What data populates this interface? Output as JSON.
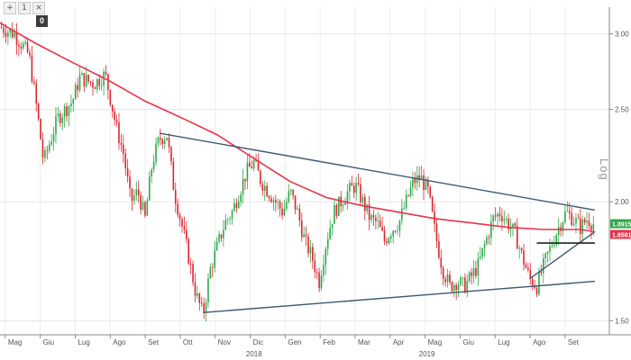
{
  "toolbar": {
    "buttons": [
      "+",
      "1",
      "×"
    ],
    "indicator": "0"
  },
  "scale_label": "Log",
  "chart_data": {
    "type": "candlestick",
    "y_scale": "log",
    "ylim": [
      1.45,
      3.2
    ],
    "y_ticks": [
      3.0,
      2.5,
      2.0,
      1.5
    ],
    "y_tick_labels": [
      "3.00",
      "2.50",
      "2.00",
      "1.50"
    ],
    "x_month_labels": [
      "Mag",
      "Giu",
      "Lug",
      "Ago",
      "Set",
      "Ott",
      "Nov",
      "Dic",
      "Gen",
      "Feb",
      "Mar",
      "Apr",
      "Mag",
      "Giu",
      "Lug",
      "Ago",
      "Set"
    ],
    "x_year_labels": [
      "2018",
      "2019"
    ],
    "price_path": [
      [
        0,
        3.05
      ],
      [
        2,
        3.0
      ],
      [
        4,
        2.85
      ],
      [
        6,
        2.2
      ],
      [
        8,
        2.45
      ],
      [
        10,
        2.55
      ],
      [
        11,
        2.7
      ],
      [
        13,
        2.66
      ],
      [
        14.5,
        2.72
      ],
      [
        16,
        2.4
      ],
      [
        17,
        2.25
      ],
      [
        18,
        2.0
      ],
      [
        19,
        2.05
      ],
      [
        20,
        1.92
      ],
      [
        21,
        2.2
      ],
      [
        22,
        2.33
      ],
      [
        23,
        2.35
      ],
      [
        24,
        2.05
      ],
      [
        25,
        1.9
      ],
      [
        26,
        1.75
      ],
      [
        27,
        1.6
      ],
      [
        28,
        1.52
      ],
      [
        29,
        1.7
      ],
      [
        30,
        1.8
      ],
      [
        31,
        1.9
      ],
      [
        32,
        1.95
      ],
      [
        33,
        2.05
      ],
      [
        34,
        2.15
      ],
      [
        35,
        2.2
      ],
      [
        36,
        2.1
      ],
      [
        37,
        2.05
      ],
      [
        38,
        2.0
      ],
      [
        39,
        1.95
      ],
      [
        40,
        2.05
      ],
      [
        41,
        1.95
      ],
      [
        42,
        1.82
      ],
      [
        43,
        1.75
      ],
      [
        44,
        1.65
      ],
      [
        45,
        1.82
      ],
      [
        46,
        1.95
      ],
      [
        47,
        2.0
      ],
      [
        48,
        2.05
      ],
      [
        49,
        2.08
      ],
      [
        50,
        2.0
      ],
      [
        51,
        1.92
      ],
      [
        52,
        1.9
      ],
      [
        53,
        1.82
      ],
      [
        54,
        1.87
      ],
      [
        55,
        1.9
      ],
      [
        56,
        2.0
      ],
      [
        57,
        2.1
      ],
      [
        58,
        2.12
      ],
      [
        59,
        2.05
      ],
      [
        60,
        1.85
      ],
      [
        61,
        1.7
      ],
      [
        62,
        1.63
      ],
      [
        63,
        1.65
      ],
      [
        64,
        1.63
      ],
      [
        65,
        1.67
      ],
      [
        66,
        1.72
      ],
      [
        67,
        1.82
      ],
      [
        68,
        1.92
      ],
      [
        69,
        1.95
      ],
      [
        70,
        1.9
      ],
      [
        71,
        1.85
      ],
      [
        72,
        1.75
      ],
      [
        73,
        1.66
      ],
      [
        74,
        1.63
      ],
      [
        75,
        1.72
      ],
      [
        76,
        1.8
      ],
      [
        77,
        1.88
      ],
      [
        78,
        1.95
      ],
      [
        79,
        1.92
      ],
      [
        80,
        1.88
      ],
      [
        81,
        1.92
      ],
      [
        82,
        1.89
      ]
    ],
    "moving_average": [
      [
        0,
        3.08
      ],
      [
        5,
        2.93
      ],
      [
        10,
        2.8
      ],
      [
        15,
        2.68
      ],
      [
        20,
        2.55
      ],
      [
        25,
        2.45
      ],
      [
        30,
        2.35
      ],
      [
        35,
        2.22
      ],
      [
        40,
        2.1
      ],
      [
        45,
        2.02
      ],
      [
        50,
        1.98
      ],
      [
        55,
        1.95
      ],
      [
        60,
        1.92
      ],
      [
        65,
        1.9
      ],
      [
        70,
        1.88
      ],
      [
        75,
        1.87
      ],
      [
        80,
        1.87
      ],
      [
        82,
        1.86
      ]
    ],
    "last_price": "1.8915",
    "ma_value": "1.8581",
    "trendlines": [
      {
        "from": [
          22,
          2.36
        ],
        "to": [
          82,
          1.96
        ]
      },
      {
        "from": [
          28,
          1.53
        ],
        "to": [
          82,
          1.65
        ]
      },
      {
        "from": [
          73,
          1.66
        ],
        "to": [
          82,
          1.86
        ]
      }
    ],
    "support_line": {
      "from": [
        74,
        1.81
      ],
      "to": [
        82,
        1.81
      ]
    }
  }
}
